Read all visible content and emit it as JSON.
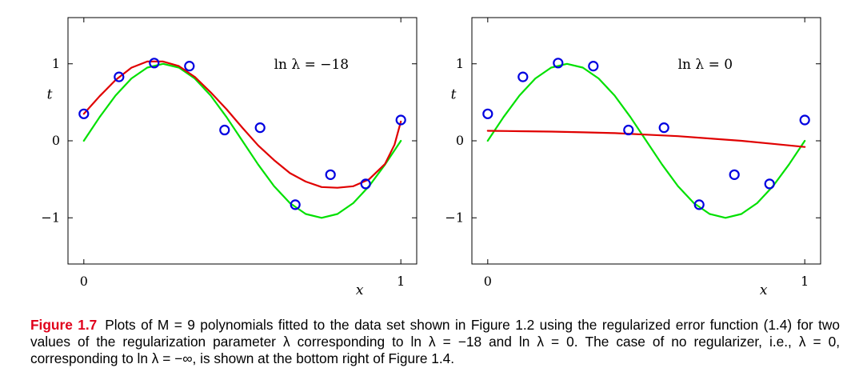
{
  "chart_data": [
    {
      "type": "scatter",
      "annotation": "ln λ = −18",
      "xlabel": "x",
      "ylabel": "t",
      "xlim": [
        -0.05,
        1.05
      ],
      "ylim": [
        -1.6,
        1.6
      ],
      "xticks": [
        {
          "v": 0,
          "label": "0"
        },
        {
          "v": 1,
          "label": "1"
        }
      ],
      "yticks": [
        {
          "v": -1,
          "label": "−1"
        },
        {
          "v": 0,
          "label": "0"
        },
        {
          "v": 1,
          "label": "1"
        }
      ],
      "grid": false,
      "points": {
        "x": [
          0.0,
          0.111,
          0.222,
          0.333,
          0.444,
          0.556,
          0.667,
          0.778,
          0.889,
          1.0
        ],
        "y": [
          0.35,
          0.83,
          1.01,
          0.97,
          0.14,
          0.17,
          -0.83,
          -0.44,
          -0.56,
          0.27
        ]
      },
      "series": [
        {
          "color": "#00e000",
          "x": [
            0,
            0.05,
            0.1,
            0.15,
            0.2,
            0.25,
            0.3,
            0.35,
            0.4,
            0.45,
            0.5,
            0.55,
            0.6,
            0.65,
            0.7,
            0.75,
            0.8,
            0.85,
            0.9,
            0.95,
            1.0
          ],
          "y": [
            0,
            0.309,
            0.588,
            0.809,
            0.951,
            1.0,
            0.951,
            0.809,
            0.588,
            0.309,
            0,
            -0.309,
            -0.588,
            -0.809,
            -0.951,
            -1.0,
            -0.951,
            -0.809,
            -0.588,
            -0.309,
            0
          ]
        },
        {
          "color": "#e00000",
          "x": [
            0,
            0.05,
            0.1,
            0.15,
            0.2,
            0.25,
            0.3,
            0.35,
            0.4,
            0.45,
            0.5,
            0.55,
            0.6,
            0.65,
            0.7,
            0.75,
            0.8,
            0.85,
            0.9,
            0.95,
            0.98,
            1.0
          ],
          "y": [
            0.35,
            0.58,
            0.79,
            0.95,
            1.03,
            1.03,
            0.97,
            0.83,
            0.63,
            0.41,
            0.17,
            -0.06,
            -0.25,
            -0.42,
            -0.53,
            -0.6,
            -0.61,
            -0.59,
            -0.5,
            -0.3,
            -0.05,
            0.25
          ]
        }
      ]
    },
    {
      "type": "scatter",
      "annotation": "ln λ = 0",
      "xlabel": "x",
      "ylabel": "t",
      "xlim": [
        -0.05,
        1.05
      ],
      "ylim": [
        -1.6,
        1.6
      ],
      "xticks": [
        {
          "v": 0,
          "label": "0"
        },
        {
          "v": 1,
          "label": "1"
        }
      ],
      "yticks": [
        {
          "v": -1,
          "label": "−1"
        },
        {
          "v": 0,
          "label": "0"
        },
        {
          "v": 1,
          "label": "1"
        }
      ],
      "grid": false,
      "points": {
        "x": [
          0.0,
          0.111,
          0.222,
          0.333,
          0.444,
          0.556,
          0.667,
          0.778,
          0.889,
          1.0
        ],
        "y": [
          0.35,
          0.83,
          1.01,
          0.97,
          0.14,
          0.17,
          -0.83,
          -0.44,
          -0.56,
          0.27
        ]
      },
      "series": [
        {
          "color": "#00e000",
          "x": [
            0,
            0.05,
            0.1,
            0.15,
            0.2,
            0.25,
            0.3,
            0.35,
            0.4,
            0.45,
            0.5,
            0.55,
            0.6,
            0.65,
            0.7,
            0.75,
            0.8,
            0.85,
            0.9,
            0.95,
            1.0
          ],
          "y": [
            0,
            0.309,
            0.588,
            0.809,
            0.951,
            1.0,
            0.951,
            0.809,
            0.588,
            0.309,
            0,
            -0.309,
            -0.588,
            -0.809,
            -0.951,
            -1.0,
            -0.951,
            -0.809,
            -0.588,
            -0.309,
            0
          ]
        },
        {
          "color": "#e00000",
          "x": [
            0,
            0.1,
            0.2,
            0.3,
            0.4,
            0.5,
            0.6,
            0.7,
            0.8,
            0.9,
            1.0
          ],
          "y": [
            0.13,
            0.125,
            0.12,
            0.11,
            0.1,
            0.08,
            0.06,
            0.03,
            0.0,
            -0.04,
            -0.08
          ]
        }
      ]
    }
  ],
  "caption": {
    "label": "Figure 1.7",
    "text": "Plots of M = 9 polynomials fitted to the data set shown in Figure 1.2 using the regularized error function (1.4) for two values of the regularization parameter λ corresponding to ln λ = −18 and ln λ = 0. The case of no regularizer, i.e., λ = 0, corresponding to ln λ = −∞, is shown at the bottom right of Figure 1.4."
  },
  "colors": {
    "points": "#0000e0",
    "caption_label": "#e0001b"
  }
}
